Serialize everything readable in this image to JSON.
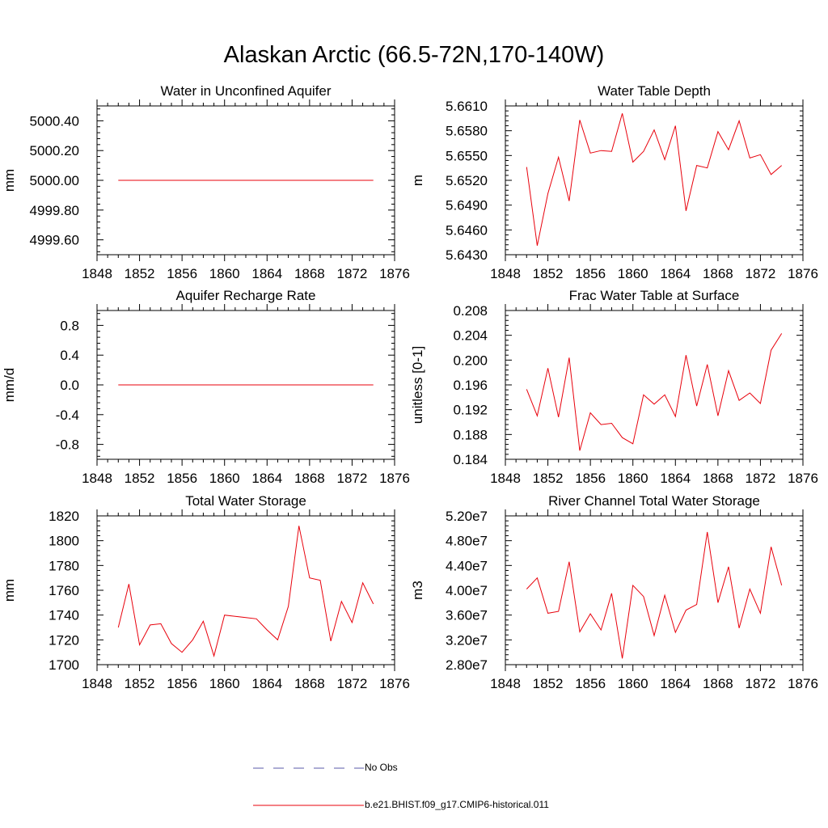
{
  "title": "Alaskan Arctic (66.5-72N,170-140W)",
  "legend": {
    "obs_label": "No Obs",
    "obs_color": "#5a5aa8",
    "model_label": "b.e21.BHIST.f09_g17.CMIP6-historical.011",
    "model_color": "#e8000b"
  },
  "chart_data": [
    {
      "type": "line",
      "title": "Water in Unconfined Aquifer",
      "ylabel": "mm",
      "xlim": [
        1848,
        1876
      ],
      "ylim": [
        4999.5,
        5000.5
      ],
      "xticks": [
        "1848",
        "1852",
        "1856",
        "1860",
        "1864",
        "1868",
        "1872",
        "1876"
      ],
      "yticks": [
        "4999.60",
        "4999.80",
        "5000.00",
        "5000.20",
        "5000.40"
      ],
      "series": [
        {
          "color": "#e8000b",
          "x": [
            1850,
            1851,
            1852,
            1853,
            1854,
            1855,
            1856,
            1857,
            1858,
            1859,
            1860,
            1861,
            1862,
            1863,
            1864,
            1865,
            1866,
            1867,
            1868,
            1869,
            1870,
            1871,
            1872,
            1873,
            1874
          ],
          "y": [
            5000,
            5000,
            5000,
            5000,
            5000,
            5000,
            5000,
            5000,
            5000,
            5000,
            5000,
            5000,
            5000,
            5000,
            5000,
            5000,
            5000,
            5000,
            5000,
            5000,
            5000,
            5000,
            5000,
            5000,
            5000
          ]
        }
      ]
    },
    {
      "type": "line",
      "title": "Water Table Depth",
      "ylabel": "m",
      "xlim": [
        1848,
        1876
      ],
      "ylim": [
        5.643,
        5.661
      ],
      "xticks": [
        "1848",
        "1852",
        "1856",
        "1860",
        "1864",
        "1868",
        "1872",
        "1876"
      ],
      "yticks": [
        "5.6430",
        "5.6460",
        "5.6490",
        "5.6520",
        "5.6550",
        "5.6580",
        "5.6610"
      ],
      "series": [
        {
          "color": "#e8000b",
          "x": [
            1850,
            1851,
            1852,
            1853,
            1854,
            1855,
            1856,
            1857,
            1858,
            1859,
            1860,
            1861,
            1862,
            1863,
            1864,
            1865,
            1866,
            1867,
            1868,
            1869,
            1870,
            1871,
            1872,
            1873,
            1874
          ],
          "y": [
            5.6536,
            5.6441,
            5.6504,
            5.6548,
            5.6495,
            5.6593,
            5.6553,
            5.6556,
            5.6555,
            5.6601,
            5.6542,
            5.6555,
            5.6581,
            5.6545,
            5.6586,
            5.6483,
            5.6538,
            5.6535,
            5.6579,
            5.6557,
            5.6592,
            5.6547,
            5.6551,
            5.6527,
            5.6538
          ]
        }
      ]
    },
    {
      "type": "line",
      "title": "Aquifer Recharge Rate",
      "ylabel": "mm/d",
      "xlim": [
        1848,
        1876
      ],
      "ylim": [
        -1.0,
        1.0
      ],
      "xticks": [
        "1848",
        "1852",
        "1856",
        "1860",
        "1864",
        "1868",
        "1872",
        "1876"
      ],
      "yticks": [
        "-0.8",
        "-0.4",
        "0.0",
        "0.4",
        "0.8"
      ],
      "series": [
        {
          "color": "#e8000b",
          "x": [
            1850,
            1851,
            1852,
            1853,
            1854,
            1855,
            1856,
            1857,
            1858,
            1859,
            1860,
            1861,
            1862,
            1863,
            1864,
            1865,
            1866,
            1867,
            1868,
            1869,
            1870,
            1871,
            1872,
            1873,
            1874
          ],
          "y": [
            0,
            0,
            0,
            0,
            0,
            0,
            0,
            0,
            0,
            0,
            0,
            0,
            0,
            0,
            0,
            0,
            0,
            0,
            0,
            0,
            0,
            0,
            0,
            0,
            0
          ]
        }
      ]
    },
    {
      "type": "line",
      "title": "Frac Water Table at Surface",
      "ylabel": "unitless [0-1]",
      "xlim": [
        1848,
        1876
      ],
      "ylim": [
        0.184,
        0.208
      ],
      "xticks": [
        "1848",
        "1852",
        "1856",
        "1860",
        "1864",
        "1868",
        "1872",
        "1876"
      ],
      "yticks": [
        "0.184",
        "0.188",
        "0.192",
        "0.196",
        "0.200",
        "0.204",
        "0.208"
      ],
      "series": [
        {
          "color": "#e8000b",
          "x": [
            1850,
            1851,
            1852,
            1853,
            1854,
            1855,
            1856,
            1857,
            1858,
            1859,
            1860,
            1861,
            1862,
            1863,
            1864,
            1865,
            1866,
            1867,
            1868,
            1869,
            1870,
            1871,
            1872,
            1873,
            1874
          ],
          "y": [
            0.1953,
            0.191,
            0.1987,
            0.1908,
            0.2004,
            0.1854,
            0.1915,
            0.1896,
            0.1898,
            0.1875,
            0.1865,
            0.1944,
            0.1929,
            0.1944,
            0.1909,
            0.2008,
            0.1926,
            0.1993,
            0.191,
            0.1983,
            0.1935,
            0.1947,
            0.193,
            0.2016,
            0.2043
          ]
        }
      ]
    },
    {
      "type": "line",
      "title": "Total Water Storage",
      "ylabel": "mm",
      "xlim": [
        1848,
        1876
      ],
      "ylim": [
        1700,
        1820
      ],
      "xticks": [
        "1848",
        "1852",
        "1856",
        "1860",
        "1864",
        "1868",
        "1872",
        "1876"
      ],
      "yticks": [
        "1700",
        "1720",
        "1740",
        "1760",
        "1780",
        "1800",
        "1820"
      ],
      "series": [
        {
          "color": "#e8000b",
          "x": [
            1850,
            1851,
            1852,
            1853,
            1854,
            1855,
            1856,
            1857,
            1858,
            1859,
            1860,
            1861,
            1862,
            1863,
            1864,
            1865,
            1866,
            1867,
            1868,
            1869,
            1870,
            1871,
            1872,
            1873,
            1874
          ],
          "y": [
            1730,
            1765,
            1716,
            1732,
            1733,
            1717,
            1710,
            1720,
            1735,
            1707,
            1740,
            1739,
            1738,
            1737,
            1728,
            1720,
            1747,
            1812,
            1770,
            1768,
            1719,
            1751,
            1734,
            1766,
            1749
          ]
        }
      ]
    },
    {
      "type": "line",
      "title": "River Channel Total Water Storage",
      "ylabel": "m3",
      "xlim": [
        1848,
        1876
      ],
      "ylim": [
        28000000,
        52000000
      ],
      "xticks": [
        "1848",
        "1852",
        "1856",
        "1860",
        "1864",
        "1868",
        "1872",
        "1876"
      ],
      "yticks": [
        "2.80e7",
        "3.20e7",
        "3.60e7",
        "4.00e7",
        "4.40e7",
        "4.80e7",
        "5.20e7"
      ],
      "series": [
        {
          "color": "#e8000b",
          "x": [
            1850,
            1851,
            1852,
            1853,
            1854,
            1855,
            1856,
            1857,
            1858,
            1859,
            1860,
            1861,
            1862,
            1863,
            1864,
            1865,
            1866,
            1867,
            1868,
            1869,
            1870,
            1871,
            1872,
            1873,
            1874
          ],
          "y": [
            40200000,
            42000000,
            36300000,
            36600000,
            44600000,
            33300000,
            36200000,
            33600000,
            39500000,
            29000000,
            40800000,
            39000000,
            32700000,
            39200000,
            33200000,
            36800000,
            37700000,
            49400000,
            38000000,
            43800000,
            33900000,
            40200000,
            36300000,
            47000000,
            40800000
          ]
        }
      ]
    }
  ]
}
